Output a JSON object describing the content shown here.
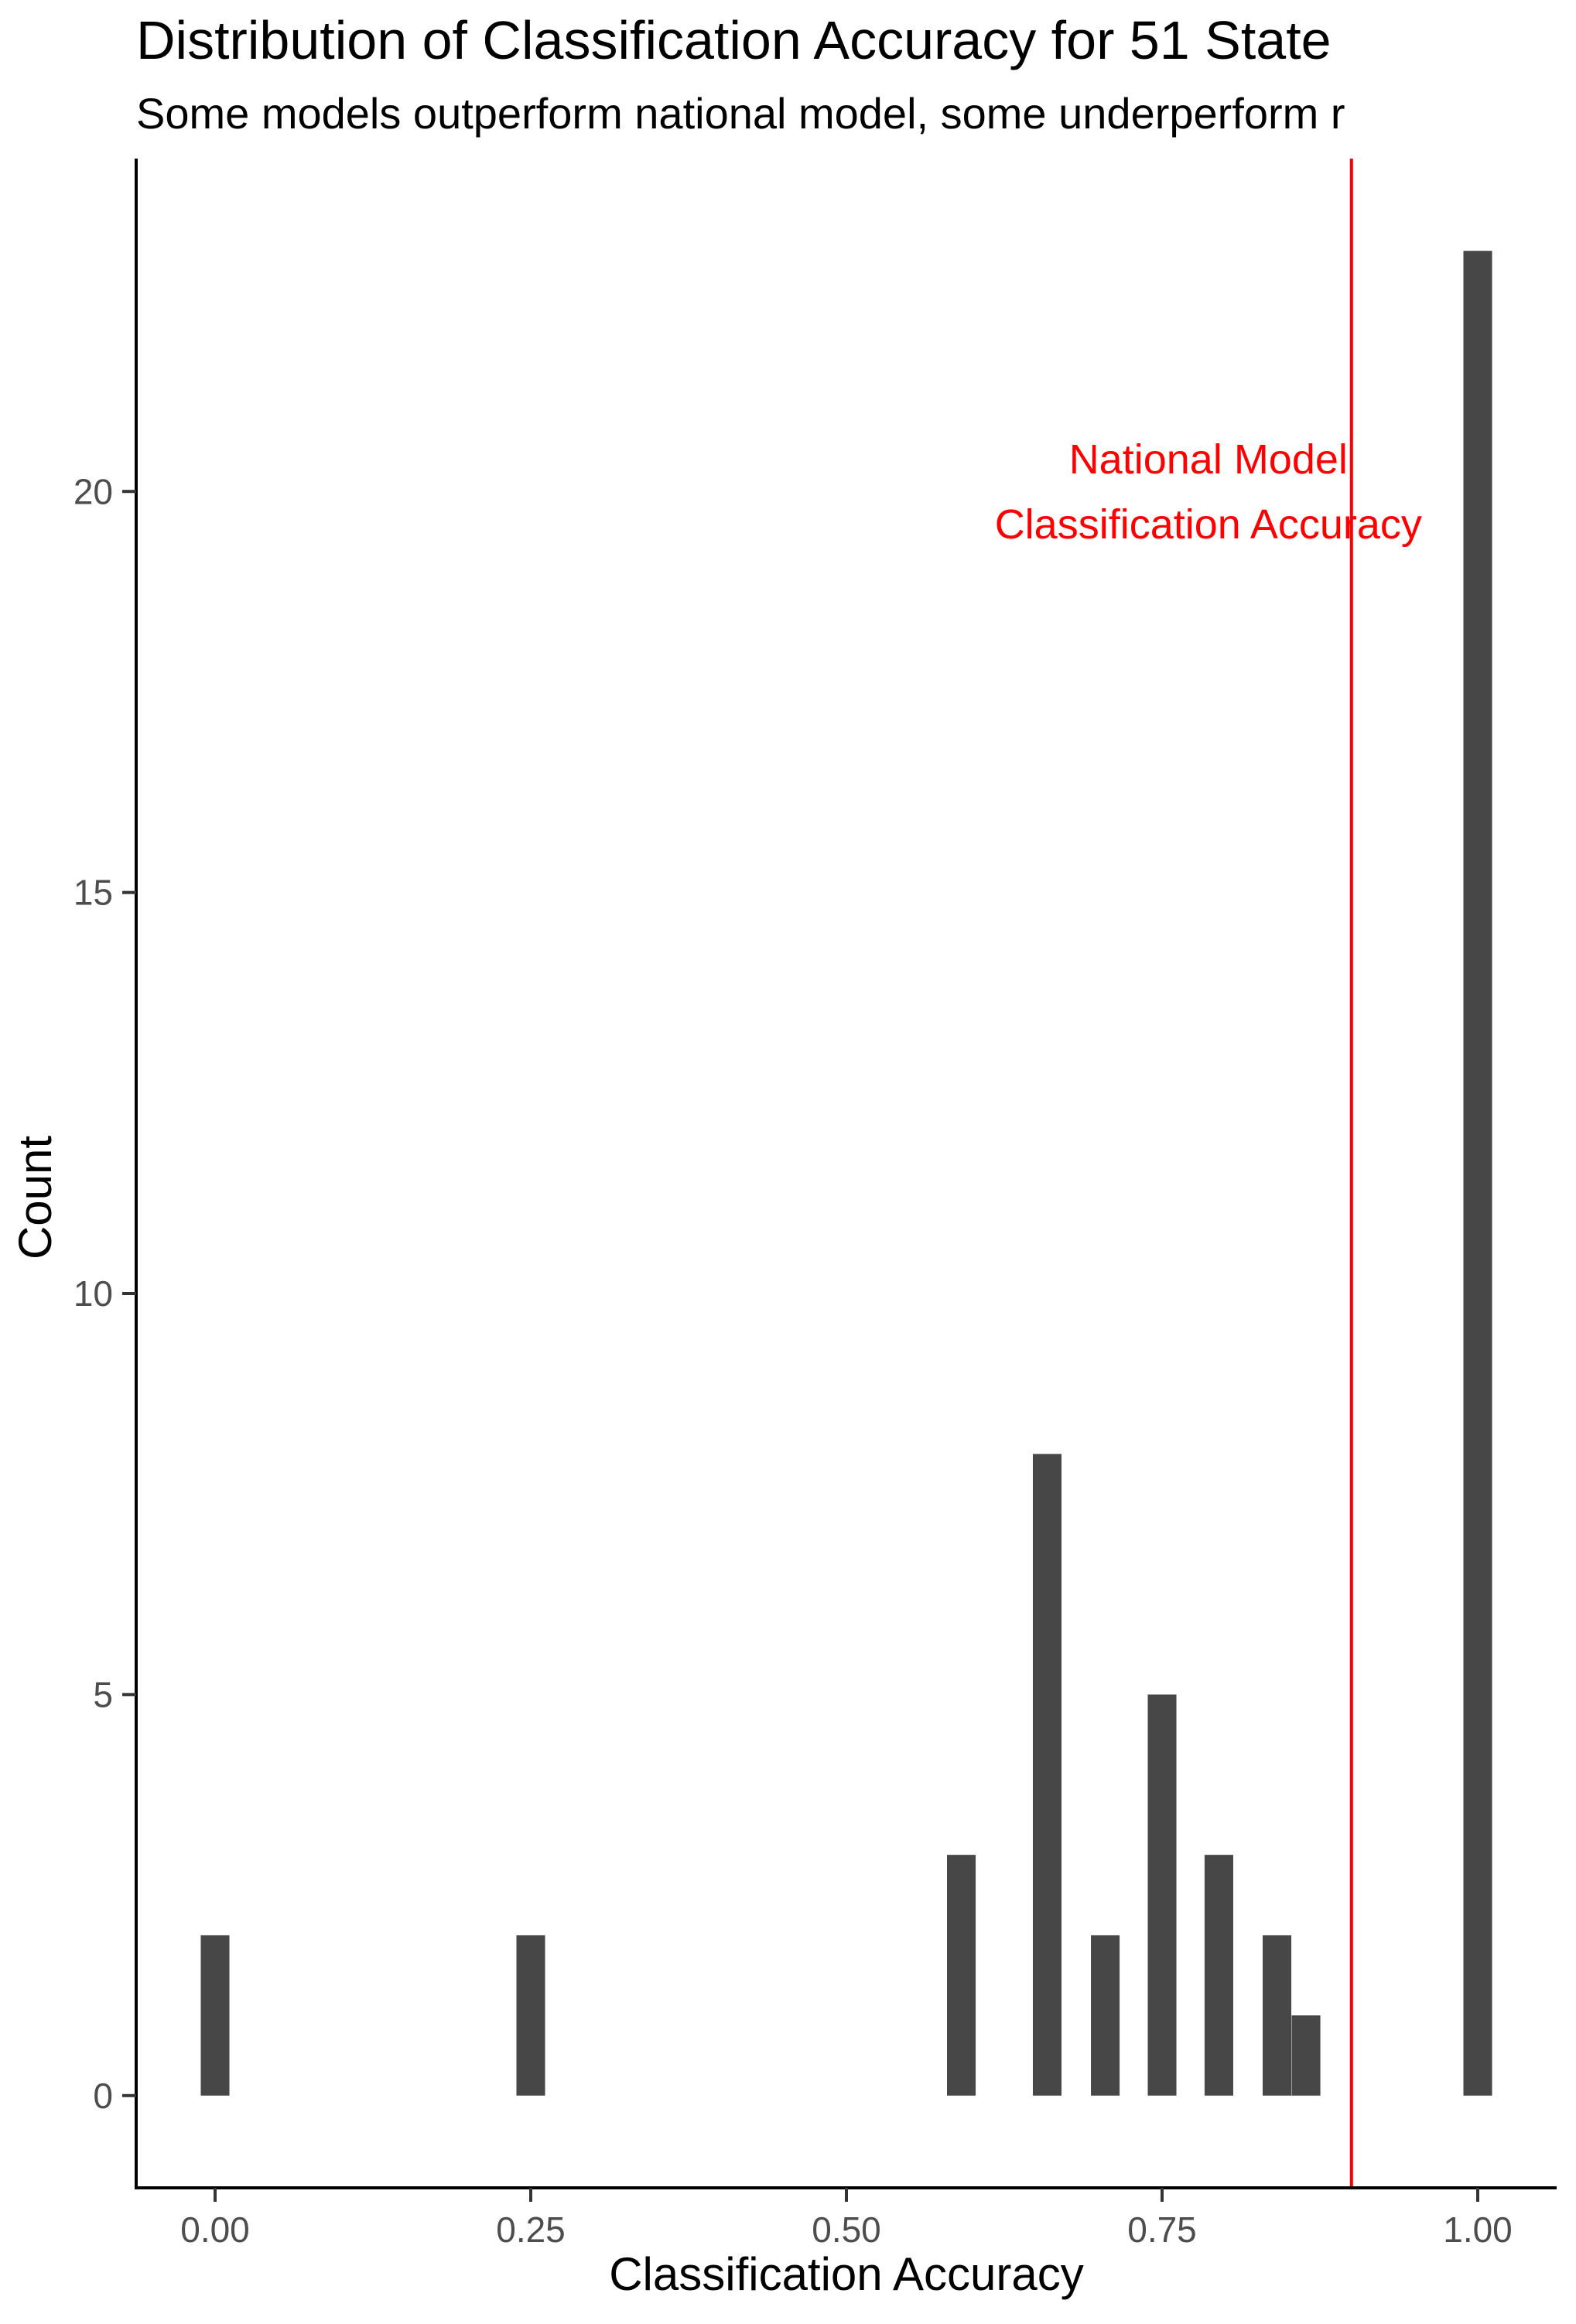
{
  "chart_data": {
    "type": "bar",
    "title": "Distribution of Classification Accuracy for 51 State",
    "subtitle": "Some models outperform national model, some underperform r",
    "xlabel": "Classification Accuracy",
    "ylabel": "Count",
    "xlim": [
      -0.0625,
      1.0625
    ],
    "ylim": [
      -1.15,
      24.15
    ],
    "x_ticks": [
      0.0,
      0.25,
      0.5,
      0.75,
      1.0
    ],
    "x_tick_labels": [
      "0.00",
      "0.25",
      "0.50",
      "0.75",
      "1.00"
    ],
    "y_ticks": [
      0,
      5,
      10,
      15,
      20
    ],
    "y_tick_labels": [
      "0",
      "5",
      "10",
      "15",
      "20"
    ],
    "bin_width": 0.0227,
    "bars": [
      {
        "x": 0.0,
        "count": 2
      },
      {
        "x": 0.25,
        "count": 2
      },
      {
        "x": 0.591,
        "count": 3
      },
      {
        "x": 0.659,
        "count": 8
      },
      {
        "x": 0.705,
        "count": 2
      },
      {
        "x": 0.75,
        "count": 5
      },
      {
        "x": 0.795,
        "count": 3
      },
      {
        "x": 0.841,
        "count": 2
      },
      {
        "x": 0.864,
        "count": 1
      },
      {
        "x": 1.0,
        "count": 23
      }
    ],
    "reference_line": {
      "x": 0.9,
      "color": "#ff0000",
      "label_lines": [
        "National Model",
        "Classification Accuracy"
      ]
    },
    "bar_color": "#474747",
    "grid": false,
    "legend": "none"
  }
}
